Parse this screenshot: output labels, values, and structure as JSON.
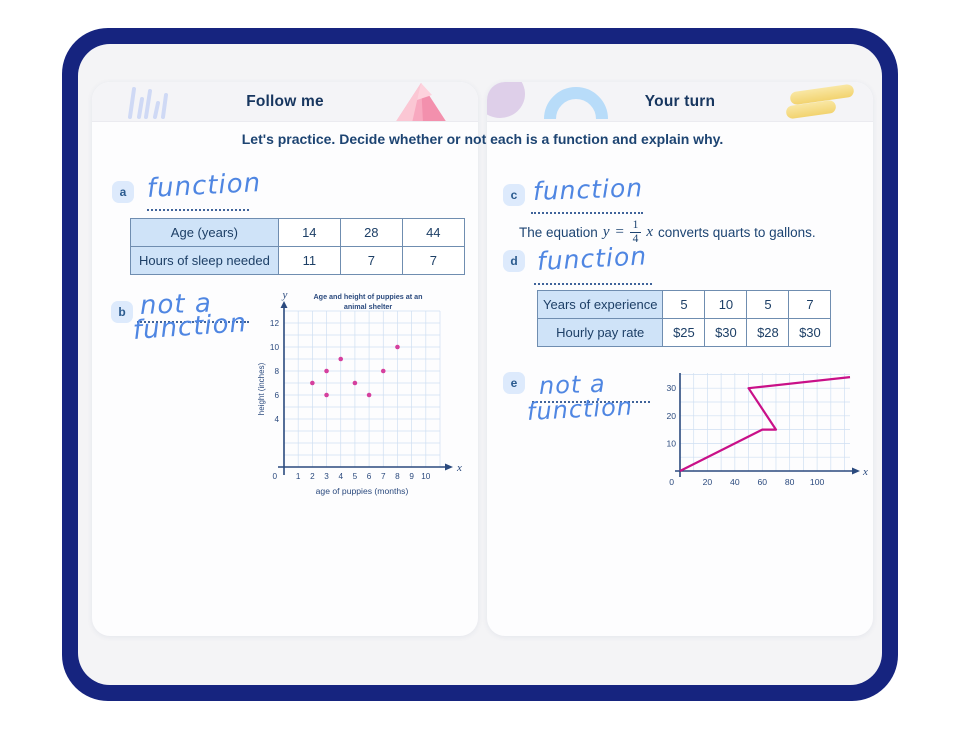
{
  "window": {
    "frame_color": "#16247f",
    "screen_bg": "#f4f4f6"
  },
  "page": {
    "instruction": "Let's practice. Decide whether or not each is a function and explain why."
  },
  "panels": {
    "follow_me": {
      "title": "Follow me"
    },
    "your_turn": {
      "title": "Your turn"
    }
  },
  "items": {
    "a": {
      "label": "a",
      "answer": "function"
    },
    "b": {
      "label": "b",
      "answer_line1": "not a",
      "answer_line2": "function"
    },
    "c": {
      "label": "c",
      "answer": "function",
      "eq_prefix": "The equation",
      "eq_lhs": "y",
      "eq_sign": "=",
      "eq_numerator": "1",
      "eq_denominator": "4",
      "eq_rhs_var": "x",
      "eq_suffix": "converts quarts to gallons."
    },
    "d": {
      "label": "d",
      "answer": "function"
    },
    "e": {
      "label": "e",
      "answer_line1": "not a",
      "answer_line2": "function"
    }
  },
  "tables": {
    "sleep": {
      "rows": [
        [
          "Age (years)",
          "14",
          "28",
          "44"
        ],
        [
          "Hours of sleep needed",
          "11",
          "7",
          "7"
        ]
      ]
    },
    "pay": {
      "rows": [
        [
          "Years of experience",
          "5",
          "10",
          "5",
          "7"
        ],
        [
          "Hourly pay rate",
          "$25",
          "$30",
          "$28",
          "$30"
        ]
      ]
    }
  },
  "chart_data": [
    {
      "id": "puppies-scatter",
      "type": "scatter",
      "title": "Age and height of puppies at an animal shelter",
      "title_lines": [
        "Age and height of puppies at an",
        "animal shelter"
      ],
      "xlabel": "age of puppies (months)",
      "ylabel": "height (inches)",
      "x_axis_letter": "x",
      "y_axis_letter": "y",
      "xlim": [
        0,
        11
      ],
      "ylim": [
        0,
        13
      ],
      "x_ticks": [
        1,
        2,
        3,
        4,
        5,
        6,
        7,
        8,
        9,
        10
      ],
      "y_ticks": [
        4,
        6,
        8,
        10,
        12
      ],
      "origin_label": "0",
      "grid": true,
      "legend": "none",
      "points": [
        [
          2,
          7
        ],
        [
          3,
          6
        ],
        [
          3,
          8
        ],
        [
          4,
          9
        ],
        [
          5,
          7
        ],
        [
          6,
          6
        ],
        [
          7,
          8
        ],
        [
          8,
          10
        ]
      ],
      "point_color": "#d5409e",
      "axis_color": "#2b4a7e",
      "grid_color": "#cfdff2"
    },
    {
      "id": "zigzag-line",
      "type": "line",
      "title": "",
      "xlabel": "",
      "ylabel": "",
      "x_axis_letter": "x",
      "xlim": [
        0,
        124
      ],
      "ylim": [
        0,
        35.5
      ],
      "x_ticks": [
        20,
        40,
        60,
        80,
        100
      ],
      "y_ticks": [
        10,
        20,
        30
      ],
      "x_grid_step": 10,
      "x_grid_max": 120,
      "y_grid_step": 5,
      "y_grid_max": 35,
      "origin_label": "0",
      "grid": true,
      "legend": "none",
      "points": [
        [
          0,
          0
        ],
        [
          60,
          15
        ],
        [
          70,
          15
        ],
        [
          50,
          30
        ],
        [
          124,
          34
        ]
      ],
      "line_color": "#c91088",
      "axis_color": "#2b4a7e",
      "grid_color": "#cfdff2"
    }
  ],
  "decorations": {
    "left_header_icons": [
      "sketch-bars-icon",
      "pink-gem-icon"
    ],
    "right_header_icons": [
      "lavender-blob-icon",
      "blue-arc-icon",
      "yellow-highlight-icon"
    ]
  },
  "colors": {
    "handwriting": "#4f86e2",
    "table_header_bg": "#cfe3f8",
    "table_border": "#6f8db0",
    "navy_text": "#1d4472",
    "scatter_point": "#d5409e",
    "line_stroke": "#c91088"
  }
}
